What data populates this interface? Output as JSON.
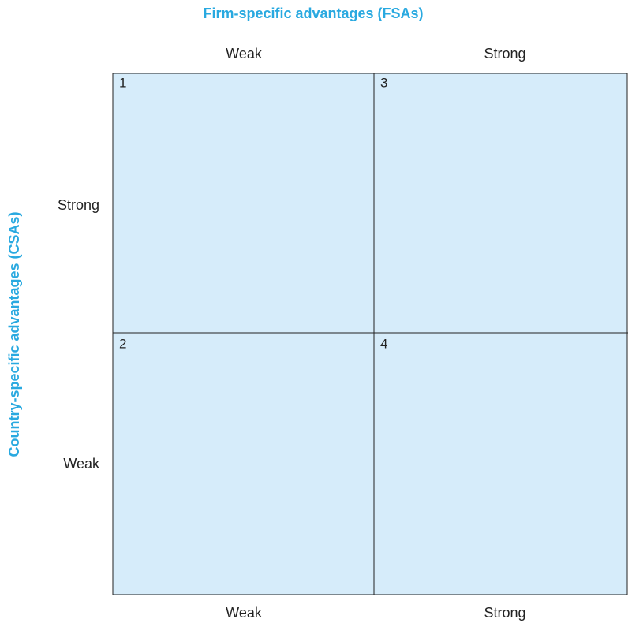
{
  "x_axis": {
    "title": "Firm-specific advantages (FSAs)",
    "top_labels": [
      "Weak",
      "Strong"
    ],
    "bottom_labels": [
      "Weak",
      "Strong"
    ]
  },
  "y_axis": {
    "title": "Country-specific advantages (CSAs)",
    "labels": [
      "Strong",
      "Weak"
    ]
  },
  "cells": [
    "1",
    "3",
    "2",
    "4"
  ]
}
